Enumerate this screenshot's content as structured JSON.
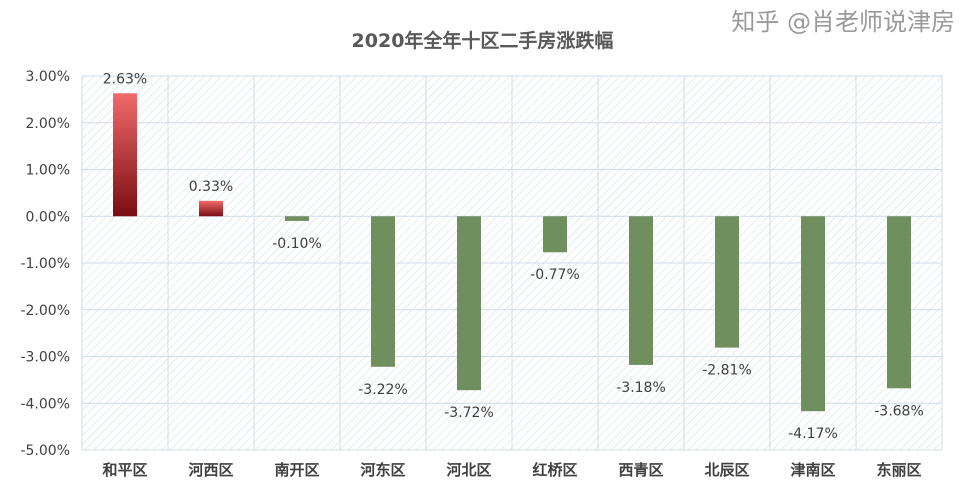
{
  "chart_data": {
    "type": "bar",
    "title": "2020年全年十区二手房涨跌幅",
    "categories": [
      "和平区",
      "河西区",
      "南开区",
      "河东区",
      "河北区",
      "红桥区",
      "西青区",
      "北辰区",
      "津南区",
      "东丽区"
    ],
    "values": [
      2.63,
      0.33,
      -0.1,
      -3.22,
      -3.72,
      -0.77,
      -3.18,
      -2.81,
      -4.17,
      -3.68
    ],
    "data_labels": [
      "2.63%",
      "0.33%",
      "-0.10%",
      "-3.22%",
      "-3.72%",
      "-0.77%",
      "-3.18%",
      "-2.81%",
      "-4.17%",
      "-3.68%"
    ],
    "ylim": [
      -5,
      3
    ],
    "yticks": [
      "3.00%",
      "2.00%",
      "1.00%",
      "0.00%",
      "-1.00%",
      "-2.00%",
      "-3.00%",
      "-4.00%",
      "-5.00%"
    ],
    "grid": true,
    "colors": {
      "positive": "#c0282d",
      "negative": "#6f8f5f",
      "grid": "#d0dcea"
    }
  },
  "watermark": "知乎 @肖老师说津房"
}
